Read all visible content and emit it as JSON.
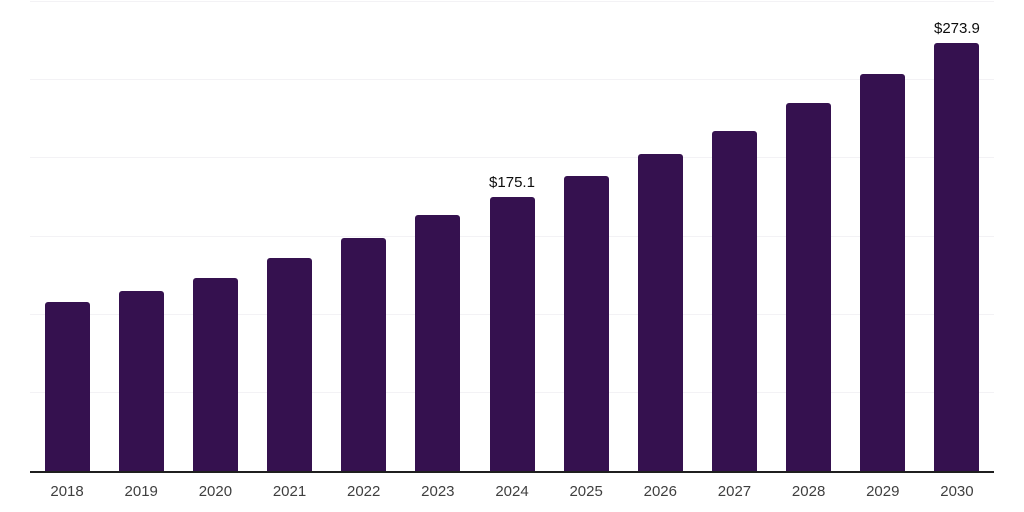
{
  "chart_data": {
    "type": "bar",
    "title": "",
    "xlabel": "",
    "ylabel": "",
    "categories": [
      "2018",
      "2019",
      "2020",
      "2021",
      "2022",
      "2023",
      "2024",
      "2025",
      "2026",
      "2027",
      "2028",
      "2029",
      "2030"
    ],
    "values": [
      108.3,
      115.3,
      123.3,
      136.4,
      149.2,
      164.0,
      175.1,
      188.7,
      203.0,
      217.7,
      235.4,
      253.9,
      273.9
    ],
    "data_labels": {
      "2024": "$175.1",
      "2030": "$273.9"
    },
    "value_prefix": "$",
    "ylim": [
      0,
      300
    ],
    "grid_step": 50,
    "grid": "horizontal",
    "legend": false,
    "y_axis_labels_visible": false,
    "colors": {
      "bar": "#35114f",
      "grid": "#f3f2f5",
      "axis": "#1f1f1f",
      "tick_text": "#3f3f3f",
      "value_text": "#0d0d0d",
      "background": "#ffffff"
    }
  }
}
